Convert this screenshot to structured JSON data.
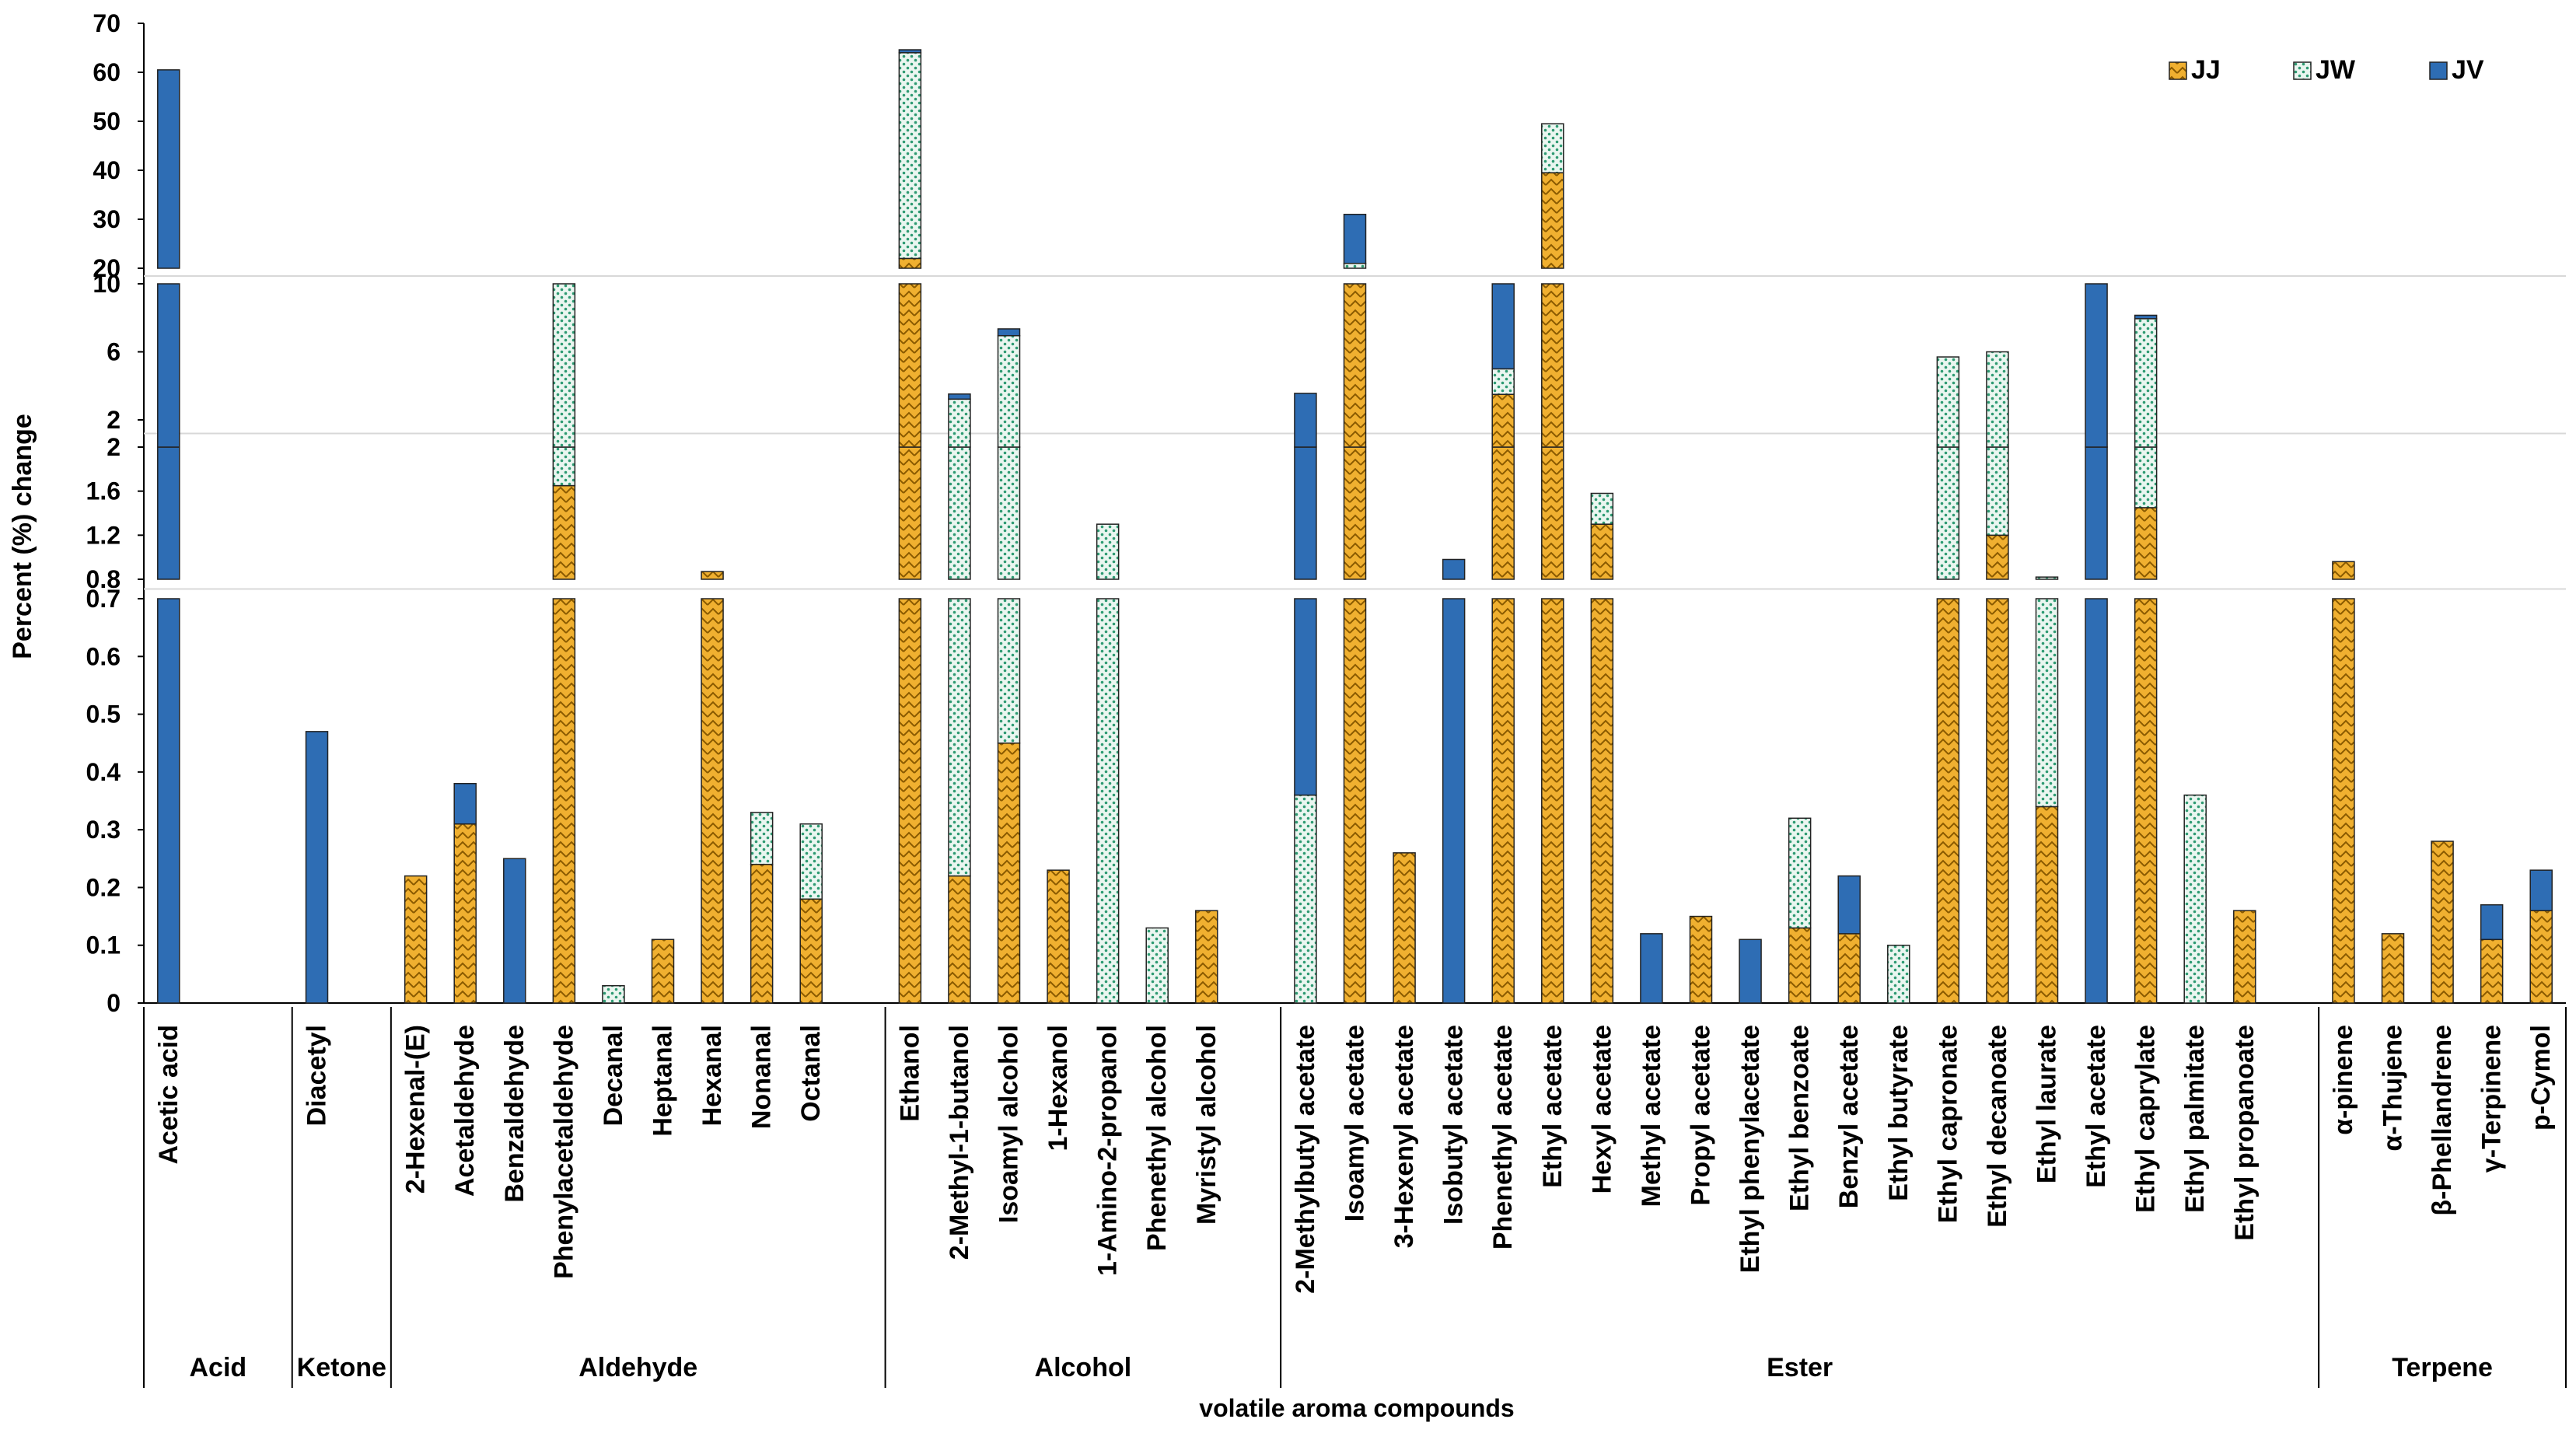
{
  "chart_data": {
    "type": "bar",
    "stacked": true,
    "y_axis_broken": true,
    "ylabel": "Percent (%) change",
    "xlabel": "volatile aroma compounds",
    "legend_position": "top-right",
    "grid": false,
    "segments": [
      {
        "range": [
          0,
          0.7
        ],
        "ticks": [
          "0",
          "0.1",
          "0.2",
          "0.3",
          "0.4",
          "0.5",
          "0.6",
          "0.7"
        ],
        "tick_values": [
          0,
          0.1,
          0.2,
          0.3,
          0.4,
          0.5,
          0.6,
          0.7
        ]
      },
      {
        "range": [
          0.8,
          2
        ],
        "ticks": [
          "0.8",
          "1.2",
          "1.6",
          "2"
        ],
        "tick_values": [
          0.8,
          1.2,
          1.6,
          2
        ]
      },
      {
        "range": [
          2,
          10
        ],
        "ticks": [
          "2",
          "6",
          "10"
        ],
        "tick_values": [
          2,
          6,
          10
        ]
      },
      {
        "range": [
          20,
          70
        ],
        "ticks": [
          "20",
          "30",
          "40",
          "50",
          "60",
          "70"
        ],
        "tick_values": [
          20,
          30,
          40,
          50,
          60,
          70
        ]
      }
    ],
    "series": [
      {
        "name": "JJ",
        "label": "JJ",
        "color": "#f0b030"
      },
      {
        "name": "JW",
        "label": "JW",
        "color": "#2e9a72"
      },
      {
        "name": "JV",
        "label": "JV",
        "color": "#2e6db4"
      }
    ],
    "groups": [
      {
        "label": "Acid",
        "slots": 3
      },
      {
        "label": "Ketone",
        "slots": 2
      },
      {
        "label": "Aldehyde",
        "slots": 10
      },
      {
        "label": "Alcohol",
        "slots": 8
      },
      {
        "label": "Ester",
        "slots": 21
      },
      {
        "label": "Terpene",
        "slots": 5
      }
    ],
    "categories": [
      "Acetic acid",
      "",
      "",
      "Diacetyl",
      "",
      "2-Hexenal-(E)",
      "Acetaldehyde",
      "Benzaldehyde",
      "Phenylacetaldehyde",
      "Decanal",
      "Heptanal",
      "Hexanal",
      "Nonanal",
      "Octanal",
      "",
      "Ethanol",
      "2-Methyl-1-butanol",
      "Isoamyl alcohol",
      "1-Hexanol",
      "1-Amino-2-propanol",
      "Phenethyl alcohol",
      "Myristyl alcohol",
      "",
      "2-Methylbutyl acetate",
      "Isoamyl acetate",
      "3-Hexenyl acetate",
      "Isobutyl acetate",
      "Phenethyl acetate",
      "Ethyl acetate",
      "Hexyl acetate",
      "Methyl acetate",
      "Propyl acetate",
      "Ethyl phenylacetate",
      "Ethyl benzoate",
      "Benzyl acetate",
      "Ethyl butyrate",
      "Ethyl capronate",
      "Ethyl decanoate",
      "Ethyl laurate",
      "Ethyl acetate",
      "Ethyl caprylate",
      "Ethyl palmitate",
      "Ethyl propanoate",
      "",
      "α-pinene",
      "α-Thujene",
      "β-Phellandrene",
      "γ-Terpinene",
      "p-Cymol"
    ],
    "values": {
      "JJ": [
        0,
        0,
        0,
        0,
        0,
        0.22,
        0.31,
        0,
        1.65,
        0,
        0.11,
        0.87,
        0.24,
        0.18,
        0,
        22,
        0.22,
        0.45,
        0.23,
        0,
        0,
        0.16,
        0,
        0,
        18,
        0.26,
        0,
        3.5,
        39.5,
        1.3,
        0,
        0.15,
        0,
        0.13,
        0.12,
        0,
        0.7,
        1.2,
        0.34,
        0,
        1.45,
        0,
        0.16,
        0,
        0.96,
        0.12,
        0.28,
        0.11,
        0.16
      ],
      "JW": [
        0,
        0,
        0,
        0,
        0,
        0,
        0,
        0,
        10,
        0.03,
        0,
        0,
        0.09,
        0.13,
        0,
        42,
        3,
        6.5,
        0,
        1.3,
        0.13,
        0,
        0,
        0.36,
        3,
        0,
        0,
        1.5,
        10,
        0.28,
        0,
        0,
        0,
        0.19,
        0,
        0.1,
        5,
        4.8,
        0.48,
        0,
        6.5,
        0.36,
        0,
        0,
        0,
        0,
        0,
        0,
        0
      ],
      "JV": [
        60.5,
        0,
        0,
        0.47,
        0,
        0,
        0.07,
        0.25,
        0,
        0,
        0,
        0,
        0,
        0,
        0,
        0.6,
        0.3,
        0.4,
        0,
        0,
        0,
        0,
        0,
        3.2,
        10,
        0,
        0.98,
        6,
        0,
        0,
        0.12,
        0,
        0.11,
        0,
        0.1,
        0,
        0,
        0,
        0,
        10,
        0.2,
        0,
        0,
        0,
        0,
        0,
        0,
        0.06,
        0.07
      ]
    }
  }
}
